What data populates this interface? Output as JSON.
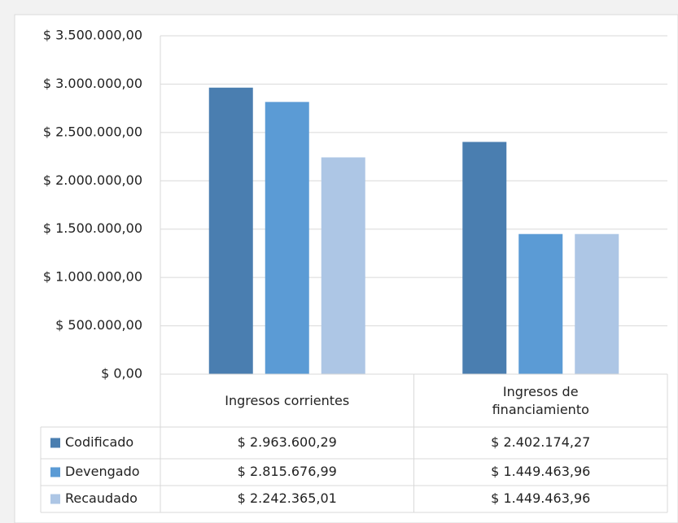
{
  "chart_data": {
    "type": "bar",
    "categories": [
      "Ingresos corrientes",
      "Ingresos de financiamiento"
    ],
    "series": [
      {
        "name": "Codificado",
        "color": "#4a7eb0",
        "values": [
          2963600.29,
          2402174.27
        ],
        "value_labels": [
          "$ 2.963.600,29",
          "$ 2.402.174,27"
        ]
      },
      {
        "name": "Devengado",
        "color": "#5b9bd5",
        "values": [
          2815676.99,
          1449463.96
        ],
        "value_labels": [
          "$ 2.815.676,99",
          "$ 1.449.463,96"
        ]
      },
      {
        "name": "Recaudado",
        "color": "#adc6e5",
        "values": [
          2242365.01,
          1449463.96
        ],
        "value_labels": [
          "$ 2.242.365,01",
          "$ 1.449.463,96"
        ]
      }
    ],
    "ylim": [
      0,
      3500000
    ],
    "yticks": [
      {
        "value": 0,
        "label": "$ 0,00"
      },
      {
        "value": 500000,
        "label": "$ 500.000,00"
      },
      {
        "value": 1000000,
        "label": "$ 1.000.000,00"
      },
      {
        "value": 1500000,
        "label": "$ 1.500.000,00"
      },
      {
        "value": 2000000,
        "label": "$ 2.000.000,00"
      },
      {
        "value": 2500000,
        "label": "$ 2.500.000,00"
      },
      {
        "value": 3000000,
        "label": "$ 3.000.000,00"
      },
      {
        "value": 3500000,
        "label": "$ 3.500.000,00"
      }
    ],
    "grid": true
  }
}
